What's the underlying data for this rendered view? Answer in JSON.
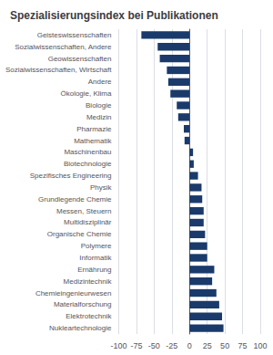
{
  "chart_data": {
    "type": "bar",
    "orientation": "horizontal",
    "title": "Spezialisierungsindex bei Publikationen",
    "categories": [
      "Geisteswissenschaften",
      "Sozialwissenschaften, Andere",
      "Geowissenschaften",
      "Sozialwissenschaften, Wirtschaft",
      "Andere",
      "Ökologie, Klima",
      "Biologie",
      "Medizin",
      "Pharmazie",
      "Mathematik",
      "Maschinenbau",
      "Biotechnologie",
      "Spezifisches Engineering",
      "Physik",
      "Grundlegende Chemie",
      "Messen, Steuern",
      "Multidisziplinär",
      "Organische Chemie",
      "Polymere",
      "Informatik",
      "Ernährung",
      "Medizintechnik",
      "Chemieingenieurwesen",
      "Materialforschung",
      "Elektrotechnik",
      "Nukleartechnologie"
    ],
    "values": [
      -68,
      -45,
      -42,
      -32,
      -30,
      -27,
      -18,
      -16,
      -8,
      -7,
      5,
      6,
      12,
      17,
      18,
      20,
      20,
      22,
      25,
      25,
      35,
      32,
      38,
      42,
      46,
      48
    ],
    "color": "#1a3a6b",
    "xlim": [
      -100,
      100
    ],
    "xticks": [
      -100,
      -75,
      -50,
      -25,
      0,
      25,
      50,
      75,
      100
    ],
    "grid": true
  }
}
